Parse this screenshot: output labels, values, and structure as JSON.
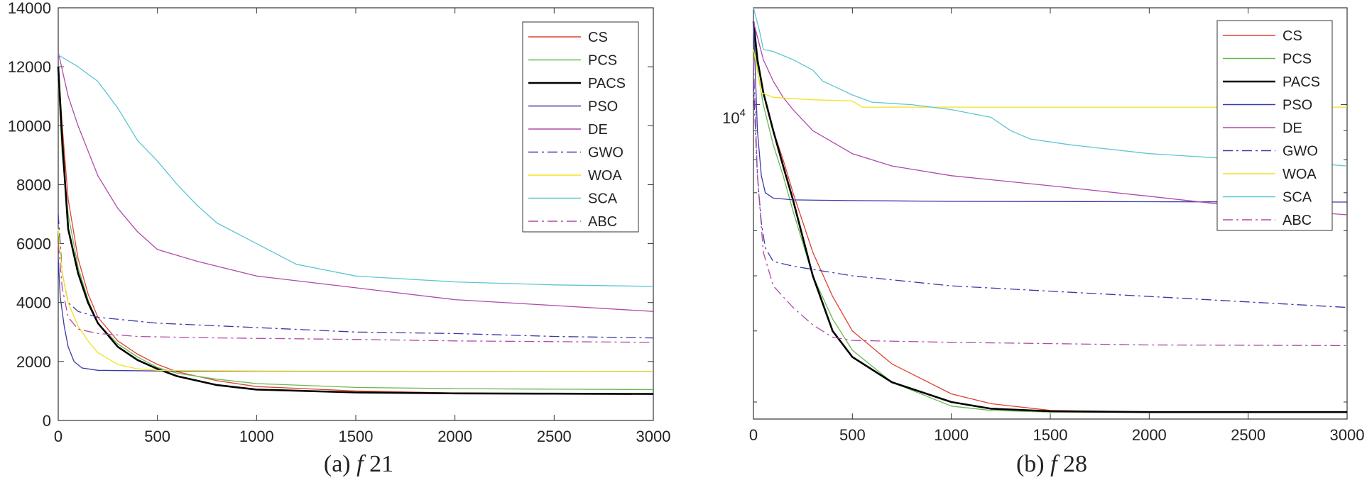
{
  "chart_data": [
    {
      "type": "line",
      "caption": "(a) f 21",
      "caption_prefix": "(a)",
      "caption_fn": "f",
      "caption_num": "21",
      "yscale": "linear",
      "xlim": [
        0,
        3000
      ],
      "ylim": [
        0,
        14000
      ],
      "xticks": [
        0,
        500,
        1000,
        1500,
        2000,
        2500,
        3000
      ],
      "xtick_labels": [
        "0",
        "500",
        "1000",
        "1500",
        "2000",
        "2500",
        "3000"
      ],
      "yticks": [
        0,
        2000,
        4000,
        6000,
        8000,
        10000,
        12000,
        14000
      ],
      "ytick_labels": [
        "0",
        "2000",
        "4000",
        "6000",
        "8000",
        "10000",
        "12000",
        "14000"
      ],
      "legend_position": "top-right",
      "series": [
        {
          "name": "CS",
          "color": "#e0412f",
          "dash": "solid",
          "x": [
            0,
            20,
            50,
            100,
            150,
            200,
            300,
            400,
            500,
            600,
            800,
            1000,
            1500,
            2000,
            2500,
            3000
          ],
          "values": [
            12000,
            10000,
            7500,
            5500,
            4300,
            3500,
            2700,
            2250,
            1900,
            1650,
            1350,
            1150,
            1000,
            930,
            910,
            900
          ]
        },
        {
          "name": "PCS",
          "color": "#69b94f",
          "dash": "solid",
          "x": [
            0,
            20,
            50,
            100,
            150,
            200,
            300,
            400,
            500,
            600,
            800,
            1000,
            1500,
            2000,
            2500,
            3000
          ],
          "values": [
            11500,
            9000,
            7000,
            5200,
            4100,
            3300,
            2600,
            2150,
            1800,
            1600,
            1400,
            1250,
            1120,
            1080,
            1060,
            1050
          ]
        },
        {
          "name": "PACS",
          "color": "#000000",
          "dash": "solid",
          "x": [
            0,
            20,
            50,
            100,
            150,
            200,
            300,
            400,
            500,
            600,
            800,
            1000,
            1500,
            2000,
            2500,
            3000
          ],
          "values": [
            12000,
            9500,
            6500,
            5000,
            4000,
            3300,
            2500,
            2050,
            1750,
            1500,
            1200,
            1050,
            950,
            920,
            910,
            900
          ]
        },
        {
          "name": "PSO",
          "color": "#3a3aa8",
          "dash": "solid",
          "x": [
            0,
            10,
            30,
            50,
            80,
            120,
            200,
            500,
            1000,
            3000
          ],
          "values": [
            5500,
            4200,
            3200,
            2500,
            2000,
            1780,
            1700,
            1680,
            1670,
            1660
          ]
        },
        {
          "name": "DE",
          "color": "#b04aa8",
          "dash": "solid",
          "x": [
            0,
            50,
            100,
            200,
            300,
            400,
            500,
            700,
            1000,
            1500,
            2000,
            2500,
            3000
          ],
          "values": [
            12500,
            11000,
            10000,
            8300,
            7200,
            6400,
            5800,
            5400,
            4900,
            4500,
            4100,
            3900,
            3700
          ]
        },
        {
          "name": "GWO",
          "color": "#3a3aa8",
          "dash": "dashdot",
          "x": [
            0,
            20,
            50,
            100,
            200,
            500,
            1000,
            1500,
            2000,
            2500,
            3000
          ],
          "values": [
            7000,
            5000,
            4000,
            3700,
            3500,
            3300,
            3150,
            3000,
            2950,
            2850,
            2800
          ]
        },
        {
          "name": "WOA",
          "color": "#f2e21f",
          "dash": "solid",
          "x": [
            0,
            20,
            50,
            100,
            150,
            200,
            300,
            400,
            500,
            1000,
            2000,
            3000
          ],
          "values": [
            6500,
            5000,
            4000,
            3200,
            2700,
            2300,
            1900,
            1750,
            1700,
            1680,
            1670,
            1660
          ]
        },
        {
          "name": "SCA",
          "color": "#5cc6d2",
          "dash": "solid",
          "x": [
            0,
            100,
            200,
            300,
            400,
            500,
            600,
            700,
            800,
            1000,
            1200,
            1500,
            2000,
            2500,
            3000
          ],
          "values": [
            12400,
            12000,
            11500,
            10600,
            9500,
            8800,
            8000,
            7300,
            6700,
            6000,
            5300,
            4900,
            4700,
            4600,
            4550
          ]
        },
        {
          "name": "ABC",
          "color": "#b04aa8",
          "dash": "dashdot",
          "x": [
            0,
            20,
            50,
            100,
            200,
            400,
            800,
            1500,
            2000,
            3000
          ],
          "values": [
            6000,
            4500,
            3500,
            3100,
            2950,
            2850,
            2800,
            2750,
            2700,
            2650
          ]
        }
      ]
    },
    {
      "type": "line",
      "caption": "(b) f 28",
      "caption_prefix": "(b)",
      "caption_fn": "f",
      "caption_num": "28",
      "yscale": "log",
      "xlim": [
        0,
        3000
      ],
      "ylim": [
        2800,
        14800
      ],
      "xticks": [
        0,
        500,
        1000,
        1500,
        2000,
        2500,
        3000
      ],
      "xtick_labels": [
        "0",
        "500",
        "1000",
        "1500",
        "2000",
        "2500",
        "3000"
      ],
      "ytick_minor": [
        3000,
        4000,
        5000,
        6000,
        7000,
        8000,
        9000
      ],
      "ytick_labeled": 10000,
      "ytick_label_base": "10",
      "ytick_label_exp": "4",
      "legend_position": "top-right",
      "series": [
        {
          "name": "CS",
          "color": "#e0412f",
          "dash": "solid",
          "x": [
            0,
            20,
            50,
            100,
            150,
            200,
            300,
            400,
            500,
            700,
            1000,
            1200,
            1500,
            2000,
            3000
          ],
          "values": [
            14000,
            12000,
            10500,
            9000,
            8000,
            7000,
            5500,
            4600,
            4000,
            3500,
            3100,
            2980,
            2900,
            2880,
            2880
          ]
        },
        {
          "name": "PCS",
          "color": "#69b94f",
          "dash": "solid",
          "x": [
            0,
            20,
            50,
            100,
            150,
            200,
            300,
            400,
            500,
            700,
            1000,
            1200,
            1500,
            2000,
            3000
          ],
          "values": [
            13500,
            11500,
            10000,
            8500,
            7500,
            6500,
            5000,
            4200,
            3700,
            3250,
            2950,
            2900,
            2880,
            2880,
            2880
          ]
        },
        {
          "name": "PACS",
          "color": "#000000",
          "dash": "solid",
          "x": [
            0,
            20,
            50,
            100,
            150,
            200,
            300,
            400,
            500,
            700,
            1000,
            1200,
            1500,
            2000,
            3000
          ],
          "values": [
            14000,
            12000,
            10500,
            9000,
            7800,
            6800,
            5000,
            4000,
            3600,
            3250,
            3000,
            2920,
            2890,
            2880,
            2880
          ]
        },
        {
          "name": "PSO",
          "color": "#3a3aa8",
          "dash": "solid",
          "x": [
            0,
            20,
            40,
            60,
            100,
            200,
            500,
            1000,
            2000,
            3000
          ],
          "values": [
            14000,
            9000,
            7500,
            7000,
            6850,
            6800,
            6780,
            6760,
            6750,
            6740
          ]
        },
        {
          "name": "DE",
          "color": "#b04aa8",
          "dash": "solid",
          "x": [
            0,
            50,
            100,
            150,
            200,
            300,
            500,
            700,
            1000,
            1500,
            2000,
            2500,
            3000
          ],
          "values": [
            14000,
            12000,
            11000,
            10300,
            9800,
            9000,
            8200,
            7800,
            7500,
            7200,
            6900,
            6600,
            6400
          ]
        },
        {
          "name": "GWO",
          "color": "#3a3aa8",
          "dash": "dashdot",
          "x": [
            0,
            10,
            20,
            40,
            60,
            100,
            200,
            500,
            1000,
            2000,
            3000
          ],
          "values": [
            11000,
            9000,
            7500,
            6200,
            5600,
            5300,
            5200,
            5000,
            4800,
            4600,
            4400
          ]
        },
        {
          "name": "WOA",
          "color": "#f2e21f",
          "dash": "solid",
          "x": [
            0,
            20,
            40,
            100,
            300,
            500,
            550,
            1000,
            2000,
            3000
          ],
          "values": [
            12500,
            11500,
            10500,
            10300,
            10200,
            10150,
            9900,
            9900,
            9900,
            9900
          ]
        },
        {
          "name": "SCA",
          "color": "#5cc6d2",
          "dash": "solid",
          "x": [
            0,
            30,
            50,
            100,
            200,
            300,
            350,
            400,
            500,
            600,
            800,
            1000,
            1200,
            1300,
            1400,
            1600,
            2000,
            2500,
            2800,
            3000
          ],
          "values": [
            14800,
            13500,
            12500,
            12400,
            12000,
            11500,
            11000,
            10800,
            10400,
            10100,
            10000,
            9800,
            9500,
            9000,
            8700,
            8500,
            8200,
            8000,
            7900,
            7800
          ]
        },
        {
          "name": "ABC",
          "color": "#b04aa8",
          "dash": "dashdot",
          "x": [
            0,
            20,
            50,
            100,
            200,
            300,
            400,
            500,
            1000,
            1500,
            2000,
            3000
          ],
          "values": [
            12000,
            7500,
            5500,
            4800,
            4400,
            4100,
            3900,
            3850,
            3820,
            3800,
            3780,
            3770
          ]
        }
      ]
    }
  ]
}
